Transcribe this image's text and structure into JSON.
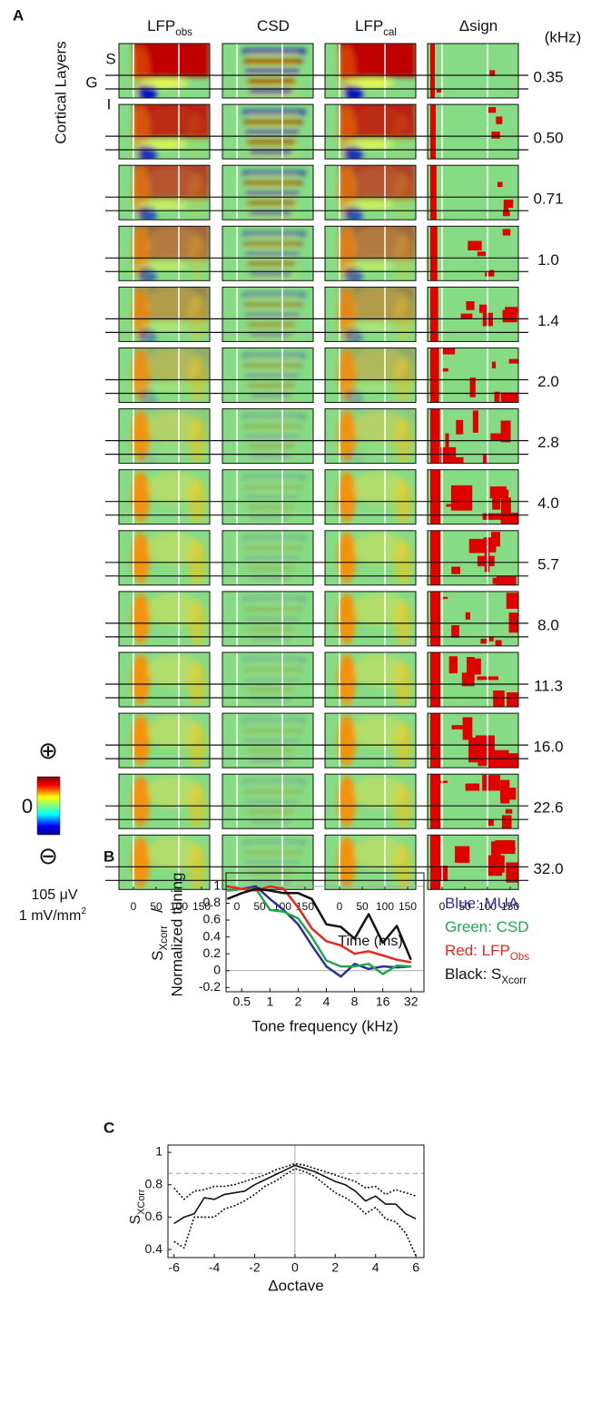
{
  "chart_data": [
    {
      "type": "heatmap-grid",
      "label": "A",
      "columns": [
        {
          "name": "LFP",
          "sub": "obs"
        },
        {
          "name": "CSD"
        },
        {
          "name": "LFP",
          "sub": "cal"
        },
        {
          "name": "Δsign"
        }
      ],
      "unit": "(kHz)",
      "frequencies": [
        "0.35",
        "0.50",
        "0.71",
        "1.0",
        "1.4",
        "2.0",
        "2.8",
        "4.0",
        "5.7",
        "8.0",
        "11.3",
        "16.0",
        "22.6",
        "32.0"
      ],
      "y_label": "Cortical Layers",
      "layers": [
        "S",
        "G",
        "I"
      ],
      "xticks": [
        0,
        50,
        100,
        150
      ],
      "x_label": "Time (ms)",
      "colorbar": {
        "plus": "⊕",
        "zero": "0",
        "minus": "⊖",
        "scale_lfp": "105 μV",
        "scale_csd": "1 mV/mm",
        "scale_csd_sup": "2"
      }
    },
    {
      "type": "line",
      "label": "B",
      "y_label": "S",
      "y_label_sub": "Xcorr",
      "y_label_sep": "/",
      "y_label_2": "Normalized tuning",
      "x_label": "Tone frequency (kHz)",
      "xscale": "log",
      "x": [
        0.35,
        0.5,
        0.71,
        1.0,
        1.4,
        2.0,
        2.8,
        4.0,
        5.7,
        8.0,
        11.3,
        16.0,
        22.6,
        32.0
      ],
      "xlim": [
        0.34,
        44
      ],
      "xticks": [
        0.5,
        1,
        2,
        4,
        8,
        16,
        32
      ],
      "ylim": [
        -0.25,
        1.16
      ],
      "yticks": [
        -0.2,
        0,
        0.2,
        0.4,
        0.6,
        0.8,
        1
      ],
      "hlines": [
        0,
        1
      ],
      "series": [
        {
          "name": "Blue: MUA",
          "color": "#2e3192",
          "values": [
            0.95,
            0.97,
            1.0,
            0.85,
            0.72,
            0.55,
            0.3,
            0.05,
            -0.07,
            0.08,
            0.02,
            0.05,
            0.04,
            0.05
          ]
        },
        {
          "name": "Green: CSD",
          "color": "#1fa84a",
          "values": [
            0.95,
            0.97,
            0.97,
            0.72,
            0.7,
            0.62,
            0.4,
            0.12,
            0.05,
            0.05,
            0.08,
            -0.04,
            0.06,
            0.05
          ]
        },
        {
          "name": "Red: LFP",
          "name_sub": "Obs",
          "color": "#e8261e",
          "values": [
            1.0,
            0.97,
            0.95,
            1.0,
            0.97,
            0.75,
            0.5,
            0.35,
            0.3,
            0.2,
            0.23,
            0.18,
            0.13,
            0.1
          ]
        },
        {
          "name": "Black: S",
          "name_sub": "Xcorr",
          "color": "#111111",
          "values": [
            0.85,
            0.92,
            0.97,
            0.95,
            0.92,
            0.92,
            0.85,
            0.55,
            0.52,
            0.38,
            0.67,
            0.33,
            0.53,
            0.13
          ]
        }
      ]
    },
    {
      "type": "line",
      "label": "C",
      "y_label": "S",
      "y_label_sub": "XCorr",
      "x_label": "Δoctave",
      "x": [
        -6,
        -5.5,
        -5,
        -4.5,
        -4,
        -3.5,
        -3,
        -2.5,
        -2,
        -1.5,
        -1,
        -0.5,
        0,
        0.5,
        1,
        1.5,
        2,
        2.5,
        3,
        3.5,
        4,
        4.5,
        5,
        5.5,
        6
      ],
      "xlim": [
        -6.3,
        6.4
      ],
      "xticks": [
        -6,
        -4,
        -2,
        0,
        2,
        4,
        6
      ],
      "ylim": [
        0.35,
        1.045
      ],
      "yticks": [
        0.4,
        0.6,
        0.8,
        1
      ],
      "vline": 0,
      "reference_line": 0.87,
      "series": [
        {
          "color": "#111111",
          "style": "solid",
          "values": [
            0.56,
            0.6,
            0.62,
            0.72,
            0.71,
            0.74,
            0.75,
            0.76,
            0.8,
            0.83,
            0.86,
            0.89,
            0.92,
            0.9,
            0.88,
            0.85,
            0.82,
            0.8,
            0.76,
            0.7,
            0.73,
            0.68,
            0.68,
            0.62,
            0.59
          ]
        },
        {
          "color": "#111111",
          "style": "dotted",
          "values": [
            0.78,
            0.71,
            0.76,
            0.77,
            0.79,
            0.79,
            0.8,
            0.82,
            0.84,
            0.86,
            0.89,
            0.91,
            0.93,
            0.92,
            0.9,
            0.88,
            0.86,
            0.84,
            0.82,
            0.78,
            0.79,
            0.74,
            0.77,
            0.75,
            0.73
          ]
        },
        {
          "color": "#111111",
          "style": "dotted",
          "values": [
            0.45,
            0.41,
            0.6,
            0.6,
            0.6,
            0.65,
            0.67,
            0.7,
            0.74,
            0.79,
            0.82,
            0.86,
            0.9,
            0.88,
            0.85,
            0.8,
            0.75,
            0.72,
            0.68,
            0.62,
            0.66,
            0.59,
            0.57,
            0.5,
            0.36
          ]
        }
      ]
    }
  ]
}
